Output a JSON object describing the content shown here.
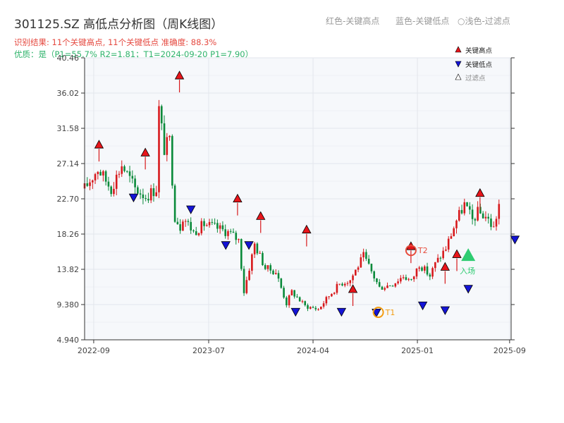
{
  "header": {
    "title": "301125.SZ 高低点分析图（周K线图）",
    "legend_red": "红色-关键高点",
    "legend_blue": "蓝色-关键低点",
    "legend_light": "○浅色-过滤点",
    "info_line1": "识别结果: 11个关键高点, 11个关键低点   准确度: 88.3%",
    "info_line2": "优质：是（P1=55.7%  R2=1.81；T1=2024-09-20 P1=7.90）"
  },
  "legend": {
    "high": "关键高点",
    "low": "关键低点",
    "filtered": "过滤点"
  },
  "annotations": {
    "t1": "T1",
    "t2": "T2",
    "entry": "入场"
  },
  "colors": {
    "up": "#d7191c",
    "down": "#0a8a3a",
    "high_marker": "#e8141a",
    "low_marker": "#1414d6",
    "t_marker": "#f39c12",
    "t2_marker": "#e74c3c",
    "entry_marker": "#2ecc71",
    "grid": "#e3e6ec",
    "plot_bg": "#f6f8fb"
  },
  "chart_data": {
    "type": "candlestick",
    "ylim": [
      4.94,
      40.46
    ],
    "y_ticks": [
      "4.940",
      "9.380",
      "13.82",
      "18.26",
      "22.70",
      "27.14",
      "31.58",
      "36.02",
      "40.46"
    ],
    "x_ticks": [
      "2022-09",
      "2023-07",
      "2024-04",
      "2025-01",
      "2025-09"
    ],
    "grid": true,
    "legend_position": "top-right",
    "price_path_weeks": [
      0,
      5,
      10,
      14,
      19,
      23,
      27,
      28,
      30,
      32,
      34,
      36,
      37,
      41,
      45,
      48,
      50,
      54,
      58,
      60,
      64,
      68,
      72,
      76,
      78,
      83,
      88,
      92,
      96,
      100,
      105,
      111,
      116,
      120,
      123,
      126,
      130,
      132,
      136,
      140,
      143,
      146,
      148,
      151,
      154,
      156
    ],
    "price_path_closes": [
      24,
      26.5,
      24,
      27,
      24,
      23,
      24,
      34,
      29,
      30,
      20.5,
      19.2,
      20.5,
      18.5,
      19.5,
      19.2,
      19,
      18.5,
      17.5,
      11,
      17,
      14,
      13.5,
      9.5,
      11,
      9.2,
      8.8,
      10.5,
      12,
      12.5,
      15.5,
      11.5,
      12,
      13,
      12.3,
      14.5,
      13,
      14.5,
      16.5,
      20,
      22,
      20,
      21,
      20.5,
      19,
      22
    ],
    "key_highs": [
      {
        "date": "2022-09",
        "price": 29.0
      },
      {
        "date": "2023-01",
        "price": 28.0
      },
      {
        "date": "2023-04",
        "price": 37.7
      },
      {
        "date": "2023-09",
        "price": 22.2
      },
      {
        "date": "2023-11",
        "price": 20.0
      },
      {
        "date": "2024-03",
        "price": 18.3
      },
      {
        "date": "2024-07",
        "price": 10.8
      },
      {
        "date": "2024-12",
        "price": 16.2
      },
      {
        "date": "2025-03",
        "price": 13.6
      },
      {
        "date": "2025-04",
        "price": 15.2
      },
      {
        "date": "2025-06",
        "price": 22.9
      }
    ],
    "key_lows": [
      {
        "date": "2022-12",
        "price": 23.4
      },
      {
        "date": "2023-05",
        "price": 21.9
      },
      {
        "date": "2023-08",
        "price": 17.4
      },
      {
        "date": "2023-10",
        "price": 17.4
      },
      {
        "date": "2024-02",
        "price": 9.0
      },
      {
        "date": "2024-06",
        "price": 9.0
      },
      {
        "date": "2024-09",
        "price": 8.9
      },
      {
        "date": "2025-01",
        "price": 9.8
      },
      {
        "date": "2025-03",
        "price": 9.2
      },
      {
        "date": "2025-05",
        "price": 11.9
      },
      {
        "date": "2025-09",
        "price": 18.1
      }
    ],
    "t1": {
      "date": "2024-09-20",
      "price": 8.4
    },
    "t2": {
      "date": "2024-12",
      "price": 16.2
    },
    "entry": {
      "date": "2025-05",
      "price": 15.5
    }
  }
}
